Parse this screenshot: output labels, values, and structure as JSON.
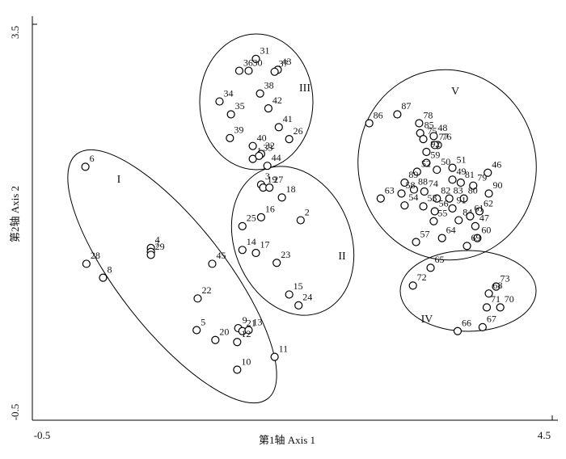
{
  "chart_data": {
    "type": "scatter",
    "x_label": "第1轴  Axis 1",
    "y_label": "第2轴  Axis 2",
    "xlim": [
      -0.5,
      4.5
    ],
    "ylim": [
      -0.5,
      3.5
    ],
    "xticks": [
      -0.5,
      4.5
    ],
    "yticks": [
      -0.5,
      3.5
    ],
    "color": "#000000",
    "annotations": [
      "I",
      "II",
      "III",
      "IV",
      "V"
    ],
    "point_labels": [
      "6",
      "28",
      "8",
      "4",
      "7",
      "29",
      "45",
      "22",
      "5",
      "20",
      "9",
      "21",
      "13",
      "12",
      "11",
      "10",
      "3",
      "19",
      "27",
      "18",
      "16",
      "2",
      "25",
      "14",
      "17",
      "23",
      "15",
      "24",
      "31",
      "30",
      "36",
      "43",
      "37",
      "38",
      "34",
      "35",
      "42",
      "41",
      "39",
      "40",
      "32",
      "26",
      "1",
      "33",
      "44",
      "86",
      "87",
      "78",
      "85",
      "75",
      "48",
      "76",
      "77",
      "92",
      "59",
      "50",
      "51",
      "52",
      "46",
      "49",
      "89",
      "88",
      "74",
      "81",
      "79",
      "63",
      "58",
      "54",
      "82",
      "83",
      "80",
      "90",
      "62",
      "53",
      "56",
      "91",
      "84",
      "61",
      "47",
      "55",
      "64",
      "60",
      "57",
      "69",
      "65",
      "72",
      "73",
      "68",
      "71",
      "70",
      "66",
      "67"
    ],
    "x": [
      0.01,
      0.02,
      0.18,
      0.64,
      0.64,
      0.64,
      1.23,
      1.09,
      1.08,
      1.26,
      1.48,
      1.52,
      1.58,
      1.47,
      1.83,
      1.47,
      1.7,
      1.72,
      1.78,
      1.9,
      1.7,
      2.08,
      1.52,
      1.52,
      1.65,
      1.85,
      1.97,
      2.06,
      1.65,
      1.58,
      1.49,
      1.86,
      1.83,
      1.69,
      1.3,
      1.41,
      1.77,
      1.87,
      1.4,
      1.62,
      1.7,
      1.97,
      1.62,
      1.68,
      1.76,
      2.74,
      3.01,
      3.22,
      3.23,
      3.26,
      3.36,
      3.4,
      3.37,
      3.29,
      3.29,
      3.39,
      3.54,
      3.2,
      3.88,
      3.54,
      3.08,
      3.17,
      3.27,
      3.62,
      3.74,
      2.85,
      3.05,
      3.08,
      3.39,
      3.51,
      3.65,
      3.89,
      3.8,
      3.26,
      3.37,
      3.54,
      3.6,
      3.71,
      3.76,
      3.36,
      3.44,
      3.78,
      3.19,
      3.68,
      3.33,
      3.16,
      3.96,
      3.89,
      3.87,
      4.0,
      3.59,
      3.83
    ],
    "values": [
      2.06,
      1.08,
      0.94,
      1.24,
      1.2,
      1.17,
      1.08,
      0.73,
      0.41,
      0.31,
      0.43,
      0.4,
      0.41,
      0.29,
      0.14,
      0.01,
      1.88,
      1.85,
      1.85,
      1.75,
      1.55,
      1.52,
      1.46,
      1.22,
      1.19,
      1.09,
      0.77,
      0.66,
      3.15,
      3.03,
      3.03,
      3.04,
      3.02,
      2.8,
      2.72,
      2.59,
      2.65,
      2.46,
      2.35,
      2.27,
      2.19,
      2.34,
      2.14,
      2.17,
      2.07,
      2.5,
      2.59,
      2.5,
      2.4,
      2.34,
      2.37,
      2.28,
      2.28,
      2.21,
      2.1,
      2.03,
      2.05,
      2.01,
      2.0,
      1.93,
      1.9,
      1.83,
      1.81,
      1.9,
      1.87,
      1.74,
      1.79,
      1.67,
      1.74,
      1.74,
      1.74,
      1.79,
      1.61,
      1.66,
      1.61,
      1.64,
      1.52,
      1.56,
      1.46,
      1.51,
      1.34,
      1.34,
      1.3,
      1.26,
      1.04,
      0.86,
      0.85,
      0.78,
      0.64,
      0.64,
      0.4,
      0.44
    ]
  }
}
